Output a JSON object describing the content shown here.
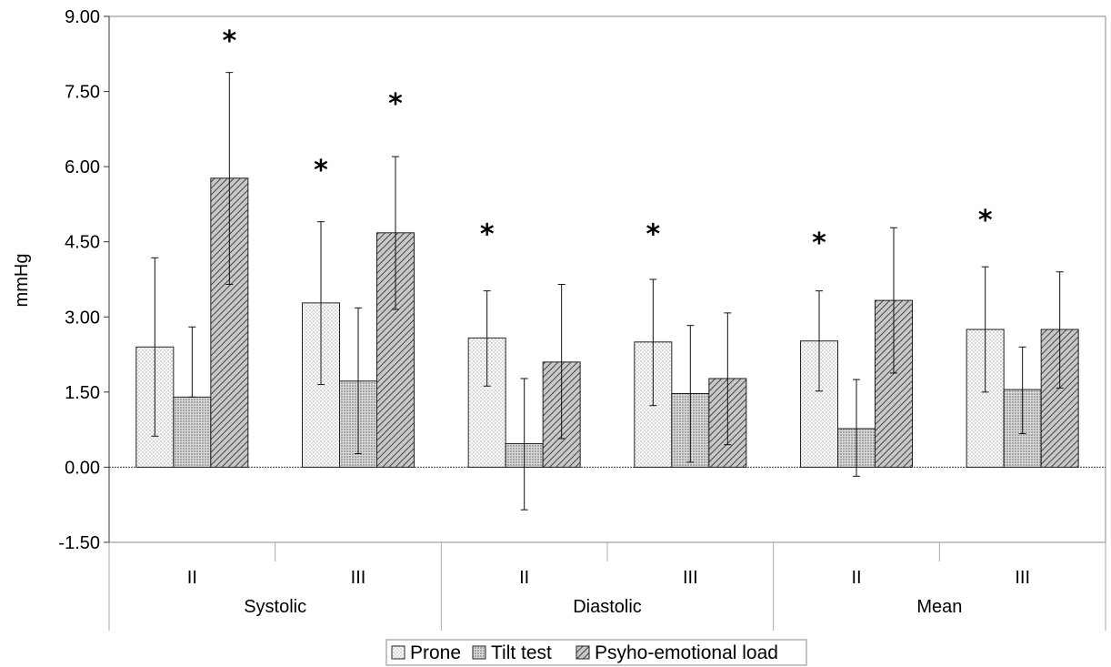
{
  "chart_data": {
    "type": "bar",
    "ylabel": "mmHg",
    "ylim": [
      -1.5,
      9.0
    ],
    "yticks": [
      "-1.50",
      "0.00",
      "1.50",
      "3.00",
      "4.50",
      "6.00",
      "7.50",
      "9.00"
    ],
    "ytick_values": [
      -1.5,
      0,
      1.5,
      3,
      4.5,
      6,
      7.5,
      9
    ],
    "groups": [
      "Systolic",
      "Diastolic",
      "Mean"
    ],
    "subcategories": [
      "II",
      "III",
      "II",
      "III",
      "II",
      "III"
    ],
    "marker": "*",
    "legend_position": "bottom",
    "series": [
      {
        "name": "Prone",
        "color": "#f2f2f2",
        "values": [
          2.4,
          3.28,
          2.58,
          2.5,
          2.52,
          2.75
        ],
        "err_low": [
          0.62,
          1.65,
          1.62,
          1.23,
          1.52,
          1.5
        ],
        "err_high": [
          4.18,
          4.9,
          3.52,
          3.75,
          3.52,
          4.0
        ],
        "significant": [
          false,
          true,
          true,
          true,
          true,
          true
        ],
        "star_y": [
          null,
          6.0,
          4.72,
          4.72,
          4.55,
          5.0
        ]
      },
      {
        "name": "Tilt test",
        "color": "#cfcfcf",
        "values": [
          1.4,
          1.72,
          0.47,
          1.47,
          0.77,
          1.55
        ],
        "err_low": [
          1.4,
          0.27,
          -0.85,
          0.1,
          -0.18,
          0.67
        ],
        "err_high": [
          2.8,
          3.18,
          1.77,
          2.83,
          1.75,
          2.4
        ],
        "significant": [
          false,
          false,
          false,
          false,
          false,
          false
        ],
        "star_y": [
          null,
          null,
          null,
          null,
          null,
          null
        ]
      },
      {
        "name": "Psyho-emotional load",
        "color": "#a9a9a9",
        "values": [
          5.77,
          4.68,
          2.1,
          1.77,
          3.33,
          2.75
        ],
        "err_low": [
          3.65,
          3.15,
          0.57,
          0.45,
          1.88,
          1.58
        ],
        "err_high": [
          7.88,
          6.2,
          3.65,
          3.08,
          4.78,
          3.9
        ],
        "significant": [
          true,
          true,
          false,
          false,
          false,
          false
        ],
        "star_y": [
          8.58,
          7.33,
          null,
          null,
          null,
          null
        ]
      }
    ]
  }
}
